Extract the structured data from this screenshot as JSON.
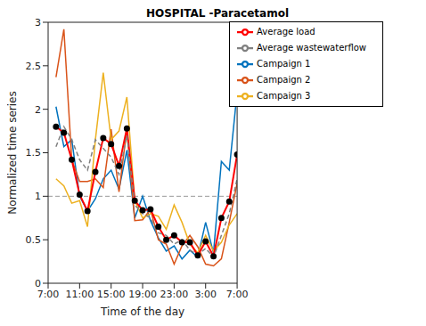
{
  "chart_data": {
    "type": "line",
    "title": "HOSPITAL -Paracetamol",
    "x_label": "Time of the day",
    "y_label": "Normalized time series",
    "x": [
      8,
      9,
      10,
      11,
      12,
      13,
      14,
      15,
      16,
      17,
      18,
      19,
      20,
      21,
      22,
      23,
      24,
      25,
      26,
      27,
      28,
      29,
      30,
      31
    ],
    "series": [
      {
        "name": "Campaign 1",
        "color": "#0072BD",
        "values": [
          2.03,
          1.57,
          1.65,
          1.0,
          0.83,
          0.97,
          1.2,
          1.3,
          1.08,
          1.53,
          0.75,
          1.0,
          0.72,
          0.52,
          0.37,
          0.43,
          0.28,
          0.38,
          0.3,
          0.7,
          0.35,
          1.4,
          1.3,
          2.2
        ]
      },
      {
        "name": "Campaign 2",
        "color": "#D95319",
        "values": [
          2.37,
          2.92,
          1.42,
          1.17,
          1.17,
          1.2,
          1.1,
          1.77,
          1.05,
          1.77,
          0.72,
          0.73,
          0.85,
          0.5,
          0.45,
          0.22,
          0.43,
          0.55,
          0.42,
          0.22,
          0.2,
          0.28,
          0.7,
          1.15
        ]
      },
      {
        "name": "Campaign 3",
        "color": "#EDB120",
        "values": [
          1.2,
          1.12,
          0.92,
          0.95,
          0.65,
          1.65,
          2.42,
          1.65,
          1.75,
          2.14,
          0.95,
          0.75,
          0.8,
          0.77,
          0.62,
          0.9,
          0.7,
          0.45,
          0.35,
          0.55,
          0.37,
          0.47,
          0.67,
          0.8
        ]
      },
      {
        "name": "Average load",
        "color": "#FF0000",
        "marker": "circle",
        "values": [
          1.8,
          1.73,
          1.42,
          1.02,
          0.83,
          1.28,
          1.67,
          1.6,
          1.35,
          1.78,
          0.95,
          0.84,
          0.85,
          0.65,
          0.5,
          0.55,
          0.47,
          0.47,
          0.32,
          0.48,
          0.31,
          0.75,
          0.94,
          1.48
        ]
      },
      {
        "name": "Average wastewaterflow",
        "color": "#808080",
        "line_style": "dashed",
        "values": [
          1.57,
          1.8,
          1.65,
          1.42,
          1.3,
          1.65,
          1.55,
          1.45,
          1.25,
          1.7,
          0.9,
          0.8,
          0.75,
          0.58,
          0.55,
          0.45,
          0.5,
          0.38,
          0.33,
          0.4,
          0.3,
          0.55,
          0.8,
          1.2
        ]
      }
    ],
    "reference_line": 1,
    "xlim": [
      7,
      31
    ],
    "xticks": [
      {
        "value": 7,
        "label": "7:00"
      },
      {
        "value": 11,
        "label": "11:00"
      },
      {
        "value": 15,
        "label": "15:00"
      },
      {
        "value": 19,
        "label": "19:00"
      },
      {
        "value": 23,
        "label": "23:00"
      },
      {
        "value": 27,
        "label": "3:00"
      },
      {
        "value": 31,
        "label": "7:00"
      }
    ],
    "ylim": [
      0,
      3
    ],
    "yticks": [
      0,
      0.5,
      1,
      1.5,
      2,
      2.5,
      3
    ],
    "grid": false,
    "legend": "top-right"
  }
}
